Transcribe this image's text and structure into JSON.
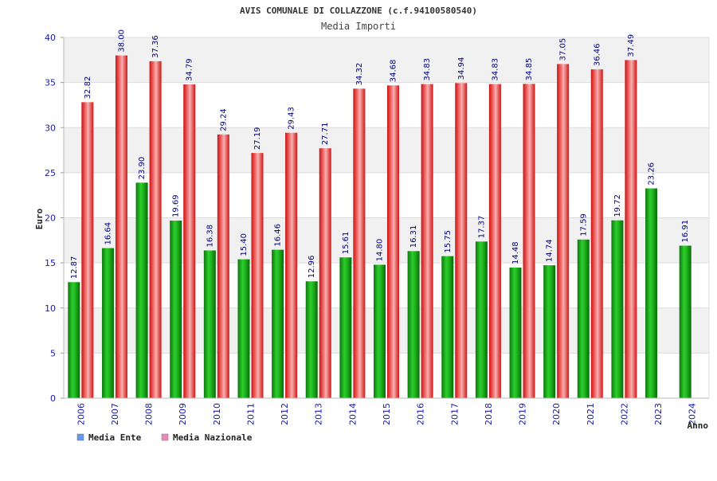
{
  "chart_data": {
    "type": "bar",
    "title": "AVIS COMUNALE DI COLLAZZONE (c.f.94100580540)",
    "subtitle": "Media Importi",
    "xlabel": "Anno",
    "ylabel": "Euro",
    "ylim": [
      0,
      40
    ],
    "yticks": [
      0,
      5,
      10,
      15,
      20,
      25,
      30,
      35,
      40
    ],
    "grid": true,
    "legend": "bottom-left",
    "categories": [
      "2006",
      "2007",
      "2008",
      "2009",
      "2010",
      "2011",
      "2012",
      "2013",
      "2014",
      "2015",
      "2016",
      "2017",
      "2018",
      "2019",
      "2020",
      "2021",
      "2022",
      "2023",
      "2024"
    ],
    "series": [
      {
        "name": "Media Ente",
        "color": "#22aa22",
        "legend_color": "#6699ee",
        "values": [
          12.87,
          16.64,
          23.9,
          19.69,
          16.38,
          15.4,
          16.46,
          12.96,
          15.61,
          14.8,
          16.31,
          15.75,
          17.37,
          14.48,
          14.74,
          17.59,
          19.72,
          23.26,
          16.91
        ],
        "labels": [
          "12.87",
          "16.64",
          "23.90",
          "19.69",
          "16.38",
          "15.40",
          "16.46",
          "12.96",
          "15.61",
          "14.80",
          "16.31",
          "15.75",
          "17.37",
          "14.48",
          "14.74",
          "17.59",
          "19.72",
          "23.26",
          "16.91"
        ]
      },
      {
        "name": "Media Nazionale",
        "color": "#ee2222",
        "legend_color": "#ee88bb",
        "values": [
          32.82,
          38.0,
          37.36,
          34.79,
          29.24,
          27.19,
          29.43,
          27.71,
          34.32,
          34.68,
          34.83,
          34.94,
          34.83,
          34.85,
          37.05,
          36.46,
          37.49,
          null,
          null
        ],
        "labels": [
          "32.82",
          "38.00",
          "37.36",
          "34.79",
          "29.24",
          "27.19",
          "29.43",
          "27.71",
          "34.32",
          "34.68",
          "34.83",
          "34.94",
          "34.83",
          "34.85",
          "37.05",
          "36.46",
          "37.49",
          null,
          null
        ]
      }
    ]
  }
}
